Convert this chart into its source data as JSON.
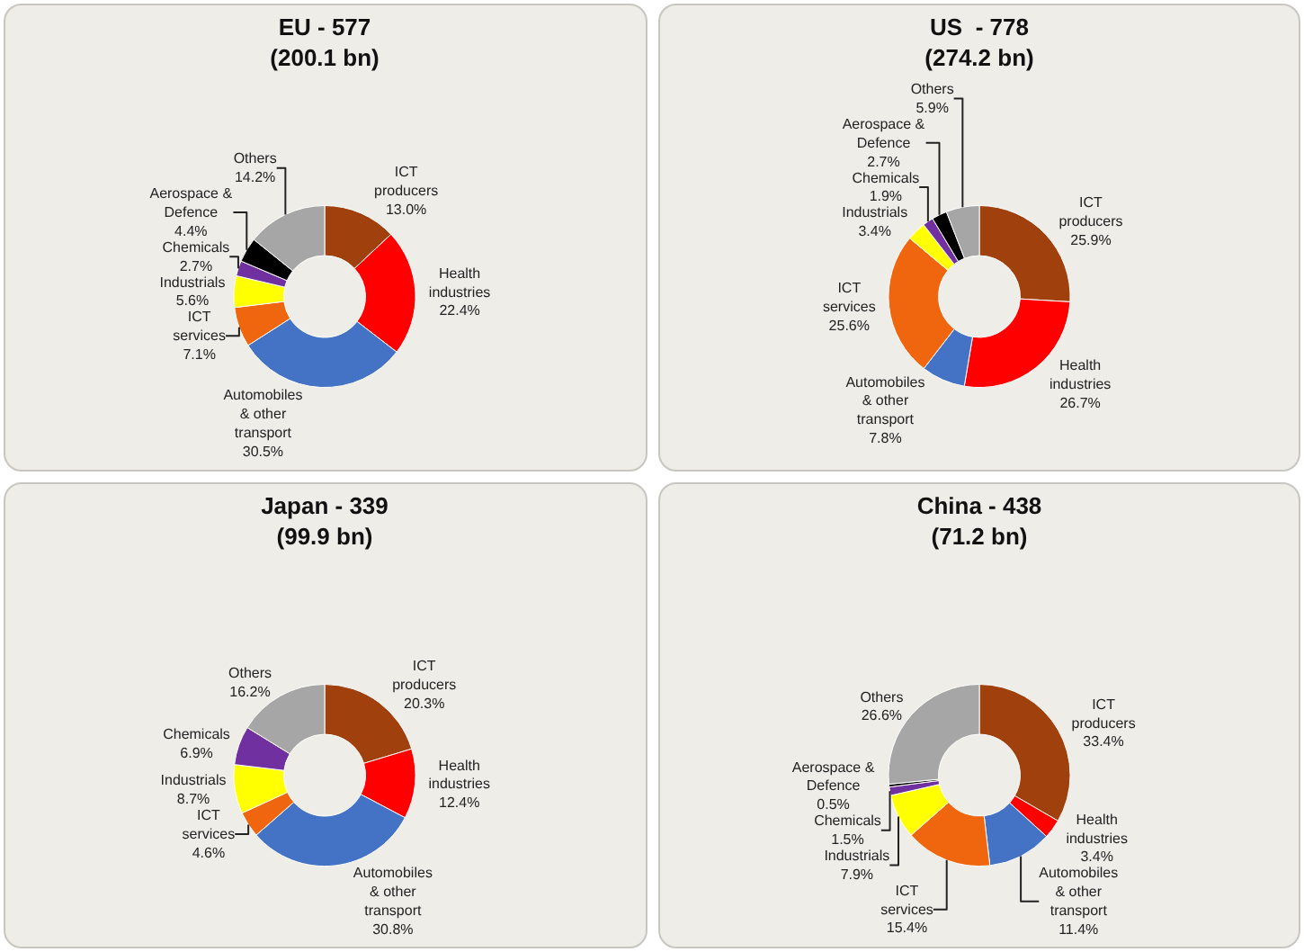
{
  "chart_data": [
    {
      "type": "donut",
      "title": "EU - 577\n(200.1 bn)",
      "categories": [
        "ICT producers",
        "Health industries",
        "Automobiles & other transport",
        "ICT services",
        "Industrials",
        "Chemicals",
        "Aerospace & Defence",
        "Others"
      ],
      "values": [
        13.0,
        22.4,
        30.5,
        7.1,
        5.6,
        2.7,
        4.4,
        14.2
      ],
      "value_labels": [
        "13.0%",
        "22.4%",
        "30.5%",
        "7.1%",
        "5.6%",
        "2.7%",
        "4.4%",
        "14.2%"
      ],
      "colors": [
        "#a0410d",
        "#ff0000",
        "#4472c4",
        "#f0660e",
        "#ffff00",
        "#7030a0",
        "#000000",
        "#a6a6a6"
      ],
      "legend": false
    },
    {
      "type": "donut",
      "title": "US  - 778\n(274.2 bn)",
      "categories": [
        "ICT producers",
        "Health industries",
        "Automobiles & other transport",
        "ICT services",
        "Industrials",
        "Chemicals",
        "Aerospace & Defence",
        "Others"
      ],
      "values": [
        25.9,
        26.7,
        7.8,
        25.6,
        3.4,
        1.9,
        2.7,
        5.9
      ],
      "value_labels": [
        "25.9%",
        "26.7%",
        "7.8%",
        "25.6%",
        "3.4%",
        "1.9%",
        "2.7%",
        "5.9%"
      ],
      "colors": [
        "#a0410d",
        "#ff0000",
        "#4472c4",
        "#f0660e",
        "#ffff00",
        "#7030a0",
        "#000000",
        "#a6a6a6"
      ],
      "legend": false
    },
    {
      "type": "donut",
      "title": "Japan - 339\n(99.9 bn)",
      "categories": [
        "ICT producers",
        "Health industries",
        "Automobiles & other transport",
        "ICT services",
        "Industrials",
        "Chemicals",
        "Others"
      ],
      "values": [
        20.3,
        12.4,
        30.8,
        4.6,
        8.7,
        6.9,
        16.2
      ],
      "value_labels": [
        "20.3%",
        "12.4%",
        "30.8%",
        "4.6%",
        "8.7%",
        "6.9%",
        "16.2%"
      ],
      "colors": [
        "#a0410d",
        "#ff0000",
        "#4472c4",
        "#f0660e",
        "#ffff00",
        "#7030a0",
        "#a6a6a6"
      ],
      "legend": false
    },
    {
      "type": "donut",
      "title": "China - 438\n(71.2 bn)",
      "categories": [
        "ICT producers",
        "Health industries",
        "Automobiles & other transport",
        "ICT services",
        "Industrials",
        "Chemicals",
        "Aerospace & Defence",
        "Others"
      ],
      "values": [
        33.4,
        3.4,
        11.4,
        15.4,
        7.9,
        1.5,
        0.5,
        26.6
      ],
      "value_labels": [
        "33.4%",
        "3.4%",
        "11.4%",
        "15.4%",
        "7.9%",
        "1.5%",
        "0.5%",
        "26.6%"
      ],
      "colors": [
        "#a0410d",
        "#ff0000",
        "#4472c4",
        "#f0660e",
        "#ffff00",
        "#7030a0",
        "#000000",
        "#a6a6a6"
      ],
      "legend": false
    }
  ]
}
